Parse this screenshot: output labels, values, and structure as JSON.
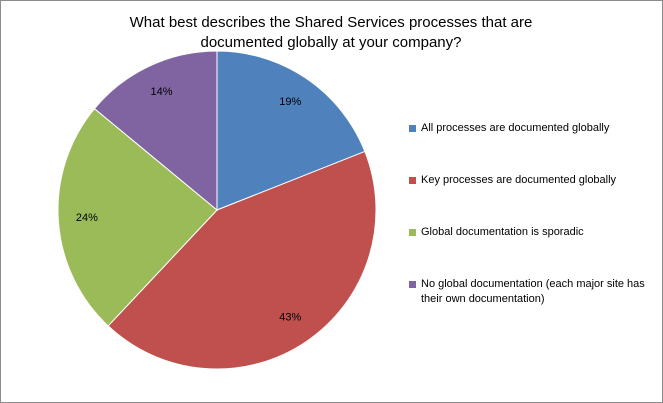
{
  "chart_data": {
    "type": "pie",
    "title": "What best describes the Shared Services processes that are documented globally at your company?",
    "categories": [
      "All processes are documented globally",
      "Key processes are documented globally",
      "Global documentation is sporadic",
      "No global documentation (each major site has their own documentation)"
    ],
    "values": [
      19,
      43,
      24,
      14
    ],
    "value_labels": [
      "19%",
      "43%",
      "24%",
      "14%"
    ],
    "colors": [
      "#4f81bd",
      "#c0504d",
      "#9bbb59",
      "#8064a2"
    ],
    "legend": "right"
  }
}
